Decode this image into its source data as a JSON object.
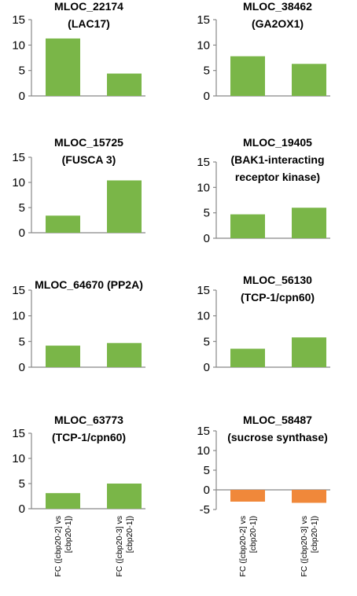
{
  "colors": {
    "positive": "#7ab648",
    "negative": "#f0883a",
    "axis": "#888888"
  },
  "category_labels": [
    [
      "FC ([cbp20-2] vs",
      "[cbp20-1])"
    ],
    [
      "FC ([cbp20-3] vs",
      "[cbp20-1])"
    ]
  ],
  "chart_data": [
    {
      "type": "bar",
      "title_lines": [
        "MLOC_22174",
        "(LAC17)"
      ],
      "categories": [
        "FC ([cbp20-2] vs [cbp20-1])",
        "FC ([cbp20-3] vs [cbp20-1])"
      ],
      "values": [
        11.3,
        4.4
      ],
      "ylim": [
        0,
        15
      ],
      "yticks": [
        "0",
        "5",
        "10",
        "15"
      ]
    },
    {
      "type": "bar",
      "title_lines": [
        "MLOC_38462",
        "(GA2OX1)"
      ],
      "categories": [
        "FC ([cbp20-2] vs [cbp20-1])",
        "FC ([cbp20-3] vs [cbp20-1])"
      ],
      "values": [
        7.8,
        6.3
      ],
      "ylim": [
        0,
        15
      ],
      "yticks": [
        "0",
        "5",
        "10",
        "15"
      ]
    },
    {
      "type": "bar",
      "title_lines": [
        "MLOC_15725",
        "(FUSCA 3)"
      ],
      "categories": [
        "FC ([cbp20-2] vs [cbp20-1])",
        "FC ([cbp20-3] vs [cbp20-1])"
      ],
      "values": [
        3.4,
        10.4
      ],
      "ylim": [
        0,
        15
      ],
      "yticks": [
        "0",
        "5",
        "10",
        "15"
      ]
    },
    {
      "type": "bar",
      "title_lines": [
        "MLOC_19405",
        "(BAK1-interacting",
        "receptor kinase)"
      ],
      "categories": [
        "FC ([cbp20-2] vs [cbp20-1])",
        "FC ([cbp20-3] vs [cbp20-1])"
      ],
      "values": [
        4.7,
        6.0
      ],
      "ylim": [
        0,
        15
      ],
      "yticks": [
        "0",
        "5",
        "10",
        "15"
      ]
    },
    {
      "type": "bar",
      "title_lines": [
        "MLOC_64670  (PP2A)"
      ],
      "categories": [
        "FC ([cbp20-2] vs [cbp20-1])",
        "FC ([cbp20-3] vs [cbp20-1])"
      ],
      "values": [
        4.2,
        4.7
      ],
      "ylim": [
        0,
        15
      ],
      "yticks": [
        "0",
        "5",
        "10",
        "15"
      ]
    },
    {
      "type": "bar",
      "title_lines": [
        "MLOC_56130",
        "(TCP-1/cpn60)"
      ],
      "categories": [
        "FC ([cbp20-2] vs [cbp20-1])",
        "FC ([cbp20-3] vs [cbp20-1])"
      ],
      "values": [
        3.6,
        5.8
      ],
      "ylim": [
        0,
        15
      ],
      "yticks": [
        "0",
        "5",
        "10",
        "15"
      ]
    },
    {
      "type": "bar",
      "title_lines": [
        "MLOC_63773",
        "(TCP-1/cpn60)"
      ],
      "categories": [
        "FC ([cbp20-2] vs [cbp20-1])",
        "FC ([cbp20-3] vs [cbp20-1])"
      ],
      "values": [
        3.1,
        5.0
      ],
      "ylim": [
        0,
        15
      ],
      "yticks": [
        "0",
        "5",
        "10",
        "15"
      ]
    },
    {
      "type": "bar",
      "title_lines": [
        "MLOC_58487",
        "(sucrose synthase)"
      ],
      "categories": [
        "FC ([cbp20-2] vs [cbp20-1])",
        "FC ([cbp20-3] vs [cbp20-1])"
      ],
      "values": [
        -3.0,
        -3.3
      ],
      "ylim": [
        -5,
        15
      ],
      "yticks": [
        "-5",
        "0",
        "5",
        "10",
        "15"
      ]
    }
  ]
}
